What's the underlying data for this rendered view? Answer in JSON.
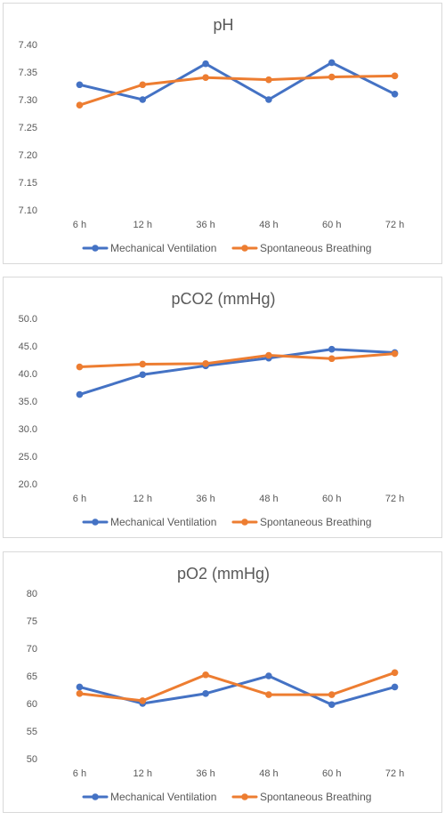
{
  "chart_data": [
    {
      "type": "line",
      "title": "pH",
      "categories": [
        "6 h",
        "12 h",
        "36 h",
        "48 h",
        "60 h",
        "72 h"
      ],
      "yticks": [
        "7.10",
        "7.15",
        "7.20",
        "7.25",
        "7.30",
        "7.35",
        "7.40"
      ],
      "ylim": [
        7.1,
        7.4
      ],
      "grid": false,
      "legend_position": "bottom",
      "series": [
        {
          "name": "Mechanical Ventilation",
          "color": "#4472c4",
          "values": [
            7.327,
            7.3,
            7.365,
            7.3,
            7.367,
            7.31
          ]
        },
        {
          "name": "Spontaneous Breathing",
          "color": "#ed7d31",
          "values": [
            7.29,
            7.327,
            7.34,
            7.336,
            7.341,
            7.343
          ]
        }
      ]
    },
    {
      "type": "line",
      "title": "pCO2 (mmHg)",
      "categories": [
        "6 h",
        "12 h",
        "36 h",
        "48 h",
        "60 h",
        "72 h"
      ],
      "yticks": [
        "20.0",
        "25.0",
        "30.0",
        "35.0",
        "40.0",
        "45.0",
        "50.0"
      ],
      "ylim": [
        20,
        50
      ],
      "grid": false,
      "legend_position": "bottom",
      "series": [
        {
          "name": "Mechanical Ventilation",
          "color": "#4472c4",
          "values": [
            36.2,
            39.8,
            41.4,
            42.8,
            44.4,
            43.8
          ]
        },
        {
          "name": "Spontaneous Breathing",
          "color": "#ed7d31",
          "values": [
            41.2,
            41.7,
            41.8,
            43.3,
            42.7,
            43.6
          ]
        }
      ]
    },
    {
      "type": "line",
      "title": "pO2 (mmHg)",
      "categories": [
        "6 h",
        "12 h",
        "36 h",
        "48 h",
        "60 h",
        "72 h"
      ],
      "yticks": [
        "50",
        "55",
        "60",
        "65",
        "70",
        "75",
        "80"
      ],
      "ylim": [
        50,
        80
      ],
      "grid": false,
      "legend_position": "bottom",
      "series": [
        {
          "name": "Mechanical Ventilation",
          "color": "#4472c4",
          "values": [
            63.0,
            60.0,
            61.8,
            65.0,
            59.8,
            63.0
          ]
        },
        {
          "name": "Spontaneous Breathing",
          "color": "#ed7d31",
          "values": [
            61.8,
            60.5,
            65.2,
            61.6,
            61.6,
            65.6
          ]
        }
      ]
    }
  ]
}
